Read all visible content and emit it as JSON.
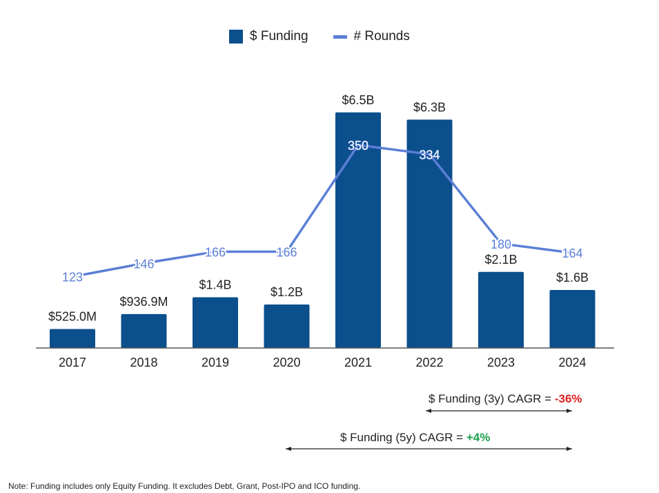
{
  "chart_data": {
    "type": "bar",
    "categories": [
      "2017",
      "2018",
      "2019",
      "2020",
      "2021",
      "2022",
      "2023",
      "2024"
    ],
    "series": [
      {
        "name": "$ Funding",
        "type": "bar",
        "values": [
          0.525,
          0.9369,
          1.4,
          1.2,
          6.5,
          6.3,
          2.1,
          1.6
        ],
        "units": "billion USD",
        "labels": [
          "$525.0M",
          "$936.9M",
          "$1.4B",
          "$1.2B",
          "$6.5B",
          "$6.3B",
          "$2.1B",
          "$1.6B"
        ]
      },
      {
        "name": "# Rounds",
        "type": "line",
        "values": [
          123,
          146,
          166,
          166,
          350,
          334,
          180,
          164
        ],
        "labels": [
          "123",
          "146",
          "166",
          "166",
          "350",
          "334",
          "180",
          "164"
        ]
      }
    ],
    "ylim_funding": [
      0,
      7.2
    ],
    "ylim_rounds": [
      0,
      450
    ],
    "colors": {
      "bar": "#0b4f8c",
      "line": "#5b7fd6",
      "axis": "#555555"
    }
  },
  "legend": {
    "funding": "$ Funding",
    "rounds": "# Rounds"
  },
  "annotations": {
    "cagr3_prefix": "$ Funding (3y) CAGR = ",
    "cagr3_value": "-36%",
    "cagr5_prefix": "$ Funding (5y) CAGR = ",
    "cagr5_value": "+4%"
  },
  "note": "Note: Funding includes only Equity Funding. It excludes Debt, Grant, Post-IPO and ICO funding."
}
